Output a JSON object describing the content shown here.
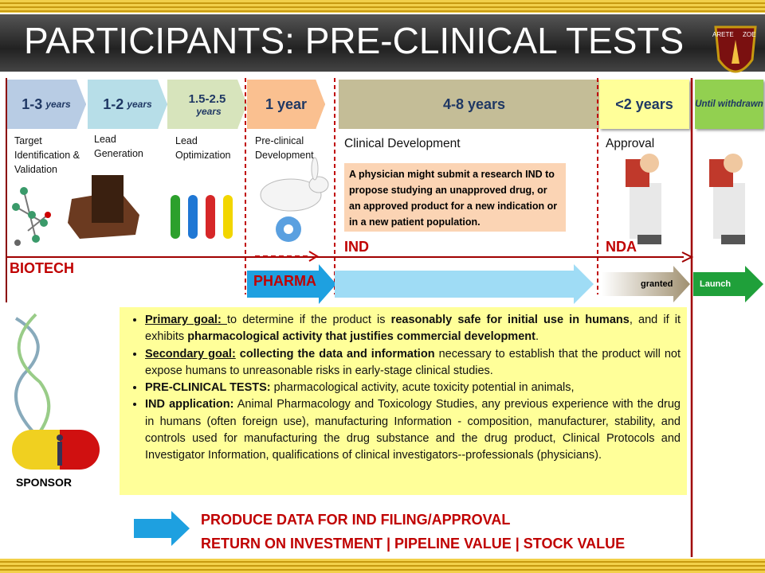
{
  "header": {
    "title": "PARTICIPANTS: PRE-CLINICAL TESTS",
    "logo": [
      "ARETE",
      "ZOE"
    ]
  },
  "phases": [
    {
      "duration": "1-3",
      "unit": "years",
      "label": "Target Identification & Validation",
      "color": "#b8cce4"
    },
    {
      "duration": "1-2",
      "unit": "years",
      "label": "Lead Generation",
      "color": "#b7dee8"
    },
    {
      "duration": "1.5-2.5",
      "unit": "years",
      "label": "Lead Optimization",
      "color": "#d7e4bc"
    },
    {
      "duration": "1 year",
      "label": "Pre-clinical Development",
      "color": "#fac090"
    },
    {
      "duration": "4-8 years",
      "label": "Clinical Development",
      "color": "#c4bd97"
    },
    {
      "duration": "<2 years",
      "label": "Approval",
      "color": "#ffff99"
    },
    {
      "duration": "Until withdrawn",
      "color": "#92d050"
    }
  ],
  "note": "A physician might submit a research IND to propose studying an unapproved drug, or an approved product for a new indication or in a new patient population.",
  "labels": {
    "biotech": "BIOTECH",
    "pharma": "PHARMA",
    "ind": "IND",
    "nda": "NDA",
    "granted": "granted",
    "launch": "Launch",
    "sponsor": "SPONSOR"
  },
  "bullets": [
    [
      {
        "text": "Primary goal: ",
        "bold": true,
        "underline": true
      },
      {
        "text": "to determine if the product is "
      },
      {
        "text": "reasonably safe for initial use in humans",
        "bold": true
      },
      {
        "text": ", and if it exhibits "
      },
      {
        "text": "pharmacological activity that justifies commercial development",
        "bold": true
      },
      {
        "text": "."
      }
    ],
    [
      {
        "text": "Secondary goal:",
        "bold": true,
        "underline": true
      },
      {
        "text": " collecting the data and information",
        "bold": true
      },
      {
        "text": " necessary to establish that the product will not expose humans to unreasonable risks in early-stage clinical studies."
      }
    ],
    [
      {
        "text": "PRE-CLINICAL TESTS:",
        "bold": true
      },
      {
        "text": " pharmacological activity, acute toxicity potential in animals,"
      }
    ],
    [
      {
        "text": "IND application:",
        "bold": true
      },
      {
        "text": " Animal Pharmacology and Toxicology Studies, any previous experience with the drug in humans (often foreign use), manufacturing Information - composition, manufacturer, stability, and controls used for manufacturing the drug substance and the drug product, Clinical Protocols and Investigator Information, qualifications of clinical investigators--professionals (physicians)."
      }
    ]
  ],
  "footer": [
    "PRODUCE DATA FOR IND FILING/APPROVAL",
    "RETURN ON INVESTMENT | PIPELINE VALUE | STOCK VALUE"
  ]
}
